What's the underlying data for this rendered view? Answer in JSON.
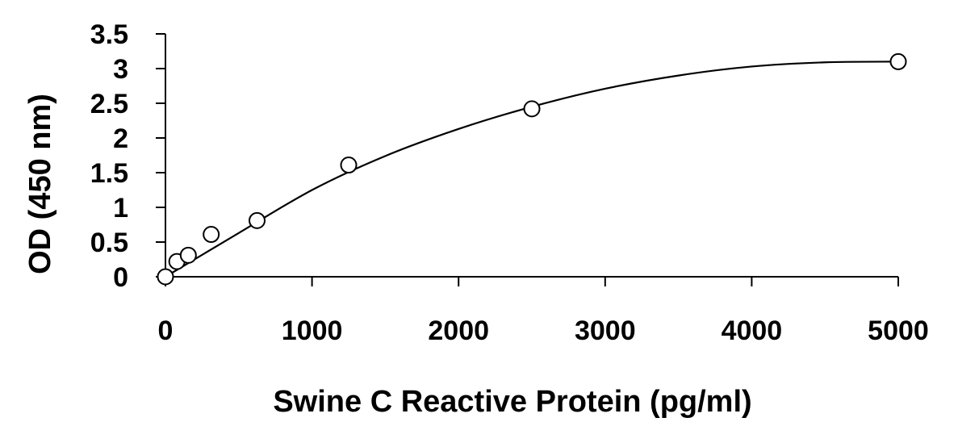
{
  "chart_data": {
    "type": "scatter",
    "title": "",
    "xlabel": "Swine C Reactive Protein (pg/ml)",
    "ylabel": "OD (450 nm)",
    "xlim": [
      0,
      5000
    ],
    "ylim": [
      0,
      3.5
    ],
    "x_ticks": [
      0,
      1000,
      2000,
      3000,
      4000,
      5000
    ],
    "x_tick_labels": [
      "0",
      "1000",
      "2000",
      "3000",
      "4000",
      "5000"
    ],
    "y_ticks": [
      0,
      0.5,
      1,
      1.5,
      2,
      2.5,
      3,
      3.5
    ],
    "y_tick_labels": [
      "0",
      "0.5",
      "1",
      "1.5",
      "2",
      "2.5",
      "3",
      "3.5"
    ],
    "grid": false,
    "series": [
      {
        "points": [
          {
            "x": 0,
            "y": 0.0
          },
          {
            "x": 78,
            "y": 0.22
          },
          {
            "x": 156,
            "y": 0.31
          },
          {
            "x": 312,
            "y": 0.61
          },
          {
            "x": 625,
            "y": 0.81
          },
          {
            "x": 1250,
            "y": 1.61
          },
          {
            "x": 2500,
            "y": 2.42
          },
          {
            "x": 5000,
            "y": 3.1
          }
        ],
        "marker": "open-circle"
      }
    ],
    "fit_curve": {
      "type": "polynomial",
      "points": [
        {
          "x": 0,
          "y": 0.0
        },
        {
          "x": 500,
          "y": 0.63
        },
        {
          "x": 1000,
          "y": 1.25
        },
        {
          "x": 1500,
          "y": 1.74
        },
        {
          "x": 2000,
          "y": 2.13
        },
        {
          "x": 2500,
          "y": 2.45
        },
        {
          "x": 3000,
          "y": 2.71
        },
        {
          "x": 3500,
          "y": 2.9
        },
        {
          "x": 4000,
          "y": 3.03
        },
        {
          "x": 4500,
          "y": 3.09
        },
        {
          "x": 5000,
          "y": 3.1
        }
      ]
    },
    "colors": {
      "axis": "#000000",
      "line": "#000000",
      "marker_fill": "#ffffff"
    }
  }
}
